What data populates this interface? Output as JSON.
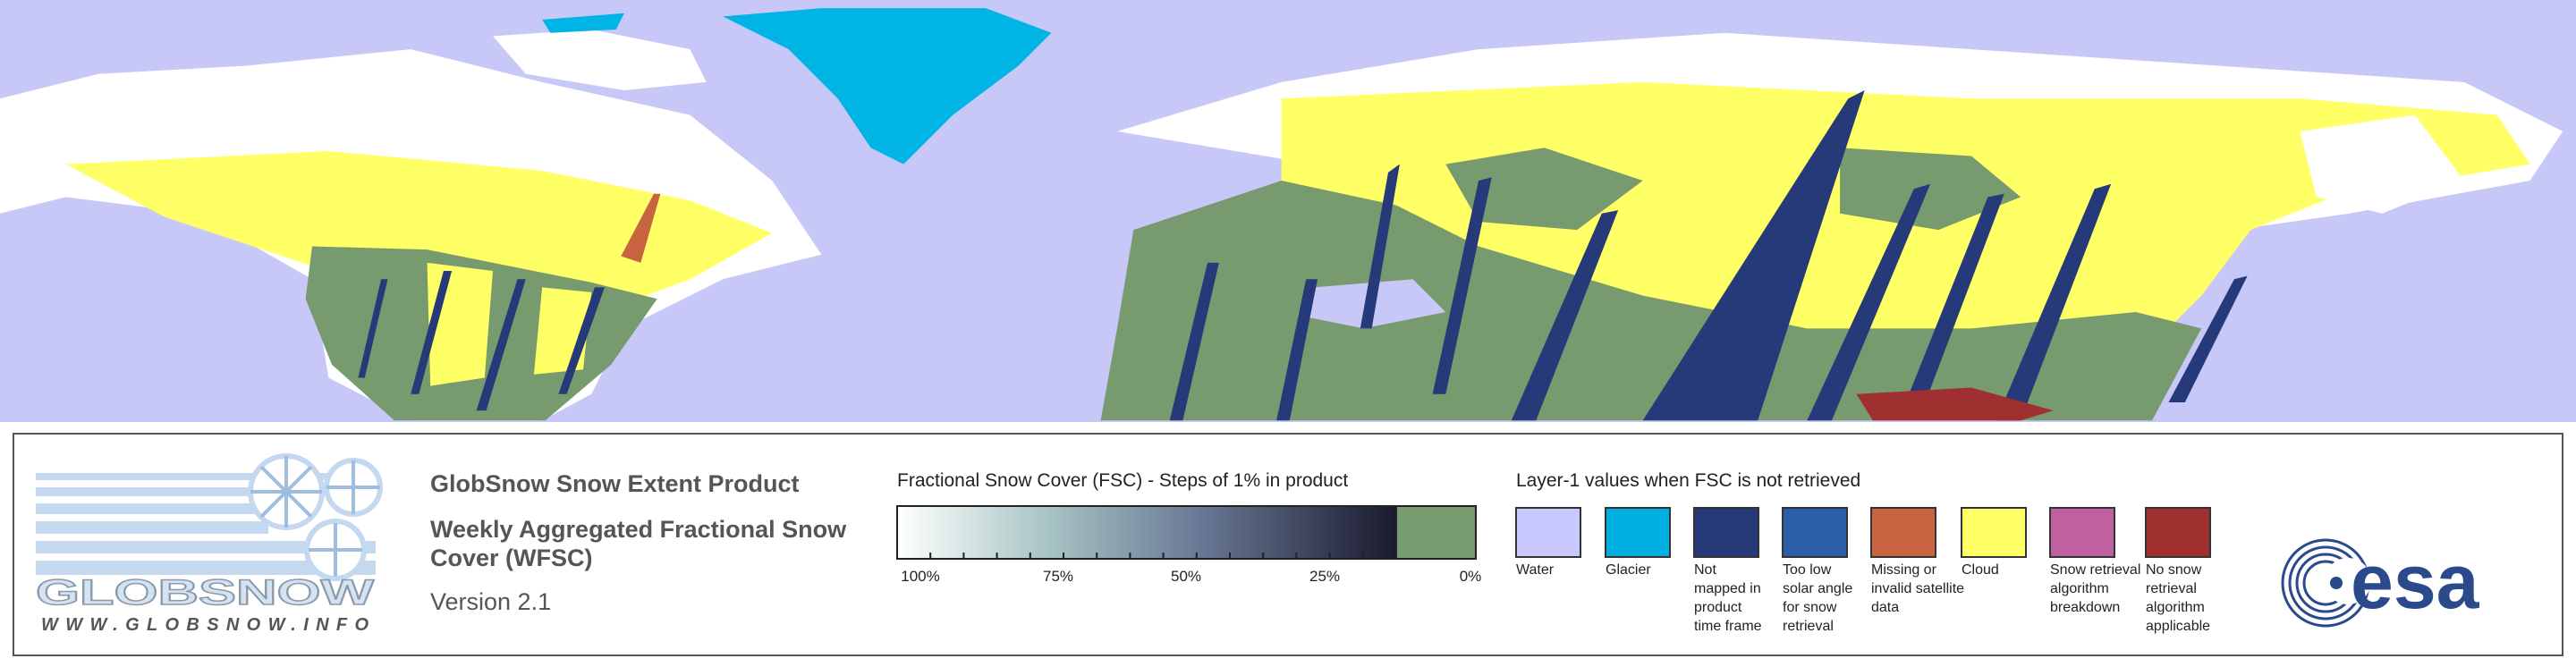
{
  "logo": {
    "name": "GLOBSNOW",
    "url": "WWW.GLOBSNOW.INFO"
  },
  "product": {
    "title": "GlobSnow Snow Extent Product",
    "subtitle_lines": [
      "Weekly Aggregated Fractional Snow",
      "Cover (WFSC)"
    ],
    "version": "Version 2.1"
  },
  "fsc_legend": {
    "title": "Fractional Snow Cover (FSC) - Steps of 1% in product",
    "labels": [
      "100%",
      "75%",
      "50%",
      "25%",
      "0%"
    ]
  },
  "layer1_legend": {
    "title": "Layer-1 values when FSC is not retrieved",
    "items": [
      {
        "color": "#c8c8ff",
        "label_lines": [
          "Water"
        ]
      },
      {
        "color": "#00b0e0",
        "label_lines": [
          "Glacier"
        ]
      },
      {
        "color": "#263a7a",
        "label_lines": [
          "Not",
          "mapped in",
          "product",
          "time frame"
        ]
      },
      {
        "color": "#2a5ea8",
        "label_lines": [
          "Too low",
          "solar angle",
          "for snow",
          "retrieval"
        ]
      },
      {
        "color": "#c86440",
        "label_lines": [
          "Missing or",
          "invalid satellite",
          "data"
        ]
      },
      {
        "color": "#ffff66",
        "label_lines": [
          "Cloud"
        ]
      },
      {
        "color": "#c060a0",
        "label_lines": [
          "Snow retrieval",
          "algorithm",
          "breakdown"
        ]
      },
      {
        "color": "#a03030",
        "label_lines": [
          "No snow",
          "retrieval",
          "algorithm",
          "applicable"
        ]
      }
    ]
  },
  "esa_logo": "esa"
}
